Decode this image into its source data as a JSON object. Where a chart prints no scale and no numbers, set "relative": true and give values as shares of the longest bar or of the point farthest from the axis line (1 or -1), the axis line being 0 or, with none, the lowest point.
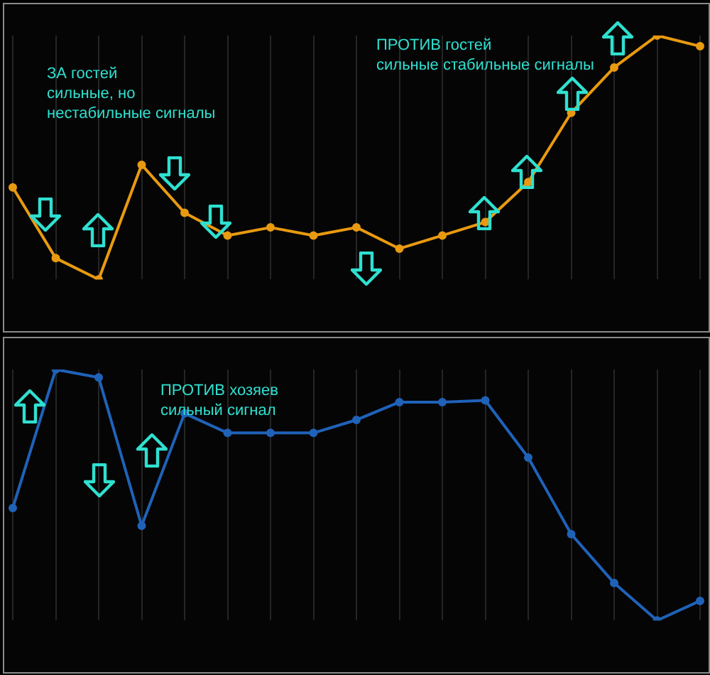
{
  "chart_data": [
    {
      "type": "line",
      "relative": true,
      "categories": [
        null,
        null,
        null,
        null,
        null,
        null,
        null,
        null,
        null,
        null,
        null,
        null,
        null,
        null,
        null,
        null,
        null
      ],
      "grid": "x",
      "marker": "circle",
      "legend": false,
      "series": [
        {
          "color": "#e89a10",
          "values": [
            0.377,
            0.087,
            0,
            0.47,
            0.273,
            0.18,
            0.213,
            0.18,
            0.213,
            0.126,
            0.18,
            0.235,
            0.399,
            0.683,
            0.869,
            1,
            0.956
          ]
        }
      ],
      "annotations": [
        "ЗА гостей\nсильные, но\nнестабильные сигналы",
        "ПРОТИВ гостей\nсильные стабильные сигналы"
      ]
    },
    {
      "type": "line",
      "relative": true,
      "categories": [
        null,
        null,
        null,
        null,
        null,
        null,
        null,
        null,
        null,
        null,
        null,
        null,
        null,
        null,
        null,
        null,
        null
      ],
      "grid": "x",
      "marker": "circle",
      "legend": false,
      "series": [
        {
          "color": "#1f62b8",
          "values": [
            0.448,
            1,
            0.968,
            0.377,
            0.825,
            0.747,
            0.747,
            0.747,
            0.799,
            0.87,
            0.87,
            0.877,
            0.649,
            0.344,
            0.149,
            0,
            0.078
          ]
        }
      ],
      "annotations": [
        "ПРОТИВ хозяев\nсильный сигнал"
      ]
    }
  ]
}
